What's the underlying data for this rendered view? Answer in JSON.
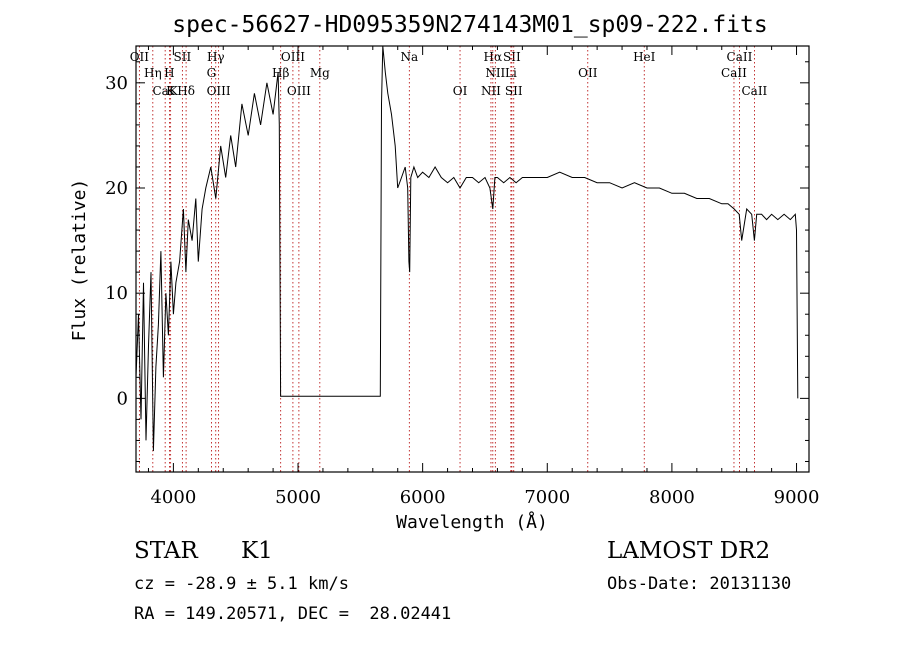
{
  "chart_data": {
    "type": "line",
    "title": "spec-56627-HD095359N274143M01_sp09-222.fits",
    "xlabel": "Wavelength (Å)",
    "ylabel": "Flux (relative)",
    "xlim": [
      3700,
      9100
    ],
    "ylim": [
      -7,
      33.5
    ],
    "xticks": [
      4000,
      5000,
      6000,
      7000,
      8000,
      9000
    ],
    "yticks": [
      0,
      10,
      20,
      30
    ],
    "grid": false,
    "series": [
      {
        "x": [
          3700,
          3720,
          3740,
          3760,
          3780,
          3800,
          3820,
          3840,
          3860,
          3880,
          3900,
          3920,
          3940,
          3960,
          3980,
          4000,
          4020,
          4050,
          4080,
          4100,
          4120,
          4150,
          4180,
          4200,
          4230,
          4260,
          4300,
          4340,
          4380,
          4420,
          4460,
          4500,
          4550,
          4600,
          4650,
          4700,
          4750,
          4800,
          4840,
          4850,
          4860,
          5660,
          5670,
          5680,
          5700,
          5720,
          5750,
          5780,
          5800,
          5830,
          5860,
          5880,
          5890,
          5896,
          5905,
          5930,
          5960,
          6000,
          6050,
          6100,
          6150,
          6200,
          6250,
          6300,
          6350,
          6400,
          6450,
          6500,
          6540,
          6563,
          6580,
          6600,
          6650,
          6700,
          6750,
          6800,
          6900,
          7000,
          7100,
          7200,
          7300,
          7400,
          7500,
          7600,
          7700,
          7800,
          7900,
          8000,
          8100,
          8200,
          8300,
          8400,
          8450,
          8500,
          8540,
          8560,
          8600,
          8640,
          8662,
          8680,
          8720,
          8760,
          8800,
          8850,
          8900,
          8950,
          8990,
          9000,
          9010
        ],
        "y": [
          2,
          8,
          -2,
          11,
          -4,
          5,
          12,
          -5,
          3,
          7,
          14,
          2,
          10,
          6,
          13,
          8,
          11,
          13,
          18,
          12,
          17,
          15,
          19,
          13,
          18,
          20,
          22,
          19,
          24,
          21,
          25,
          22,
          28,
          25,
          29,
          26,
          30,
          27,
          31,
          26,
          0.2,
          0.2,
          28,
          33.5,
          31,
          29,
          27,
          24,
          20,
          21,
          22,
          20,
          13,
          12,
          21,
          22,
          21,
          21.5,
          21,
          22,
          21,
          20.5,
          21,
          20,
          21,
          21,
          20.5,
          21,
          20,
          18,
          21,
          21,
          20.5,
          21,
          20.5,
          21,
          21,
          21,
          21.5,
          21,
          21,
          20.5,
          20.5,
          20,
          20.5,
          20,
          20,
          19.5,
          19.5,
          19,
          19,
          18.5,
          18.5,
          18,
          17.5,
          15,
          18,
          17.5,
          15,
          17.5,
          17.5,
          17,
          17.5,
          17,
          17.5,
          17,
          17.5,
          16,
          0
        ]
      }
    ],
    "lines": [
      {
        "label": "OII",
        "x": 3727,
        "row": 1
      },
      {
        "label": "Hη",
        "x": 3835,
        "row": 2
      },
      {
        "label": "CaK",
        "x": 3934,
        "row": 3
      },
      {
        "label": "H",
        "x": 3968,
        "row": 2
      },
      {
        "label": "K",
        "x": 3978,
        "row": 3
      },
      {
        "label": "SII",
        "x": 4072,
        "row": 1
      },
      {
        "label": "Hδ",
        "x": 4102,
        "row": 3
      },
      {
        "label": "Hγ",
        "x": 4340,
        "row": 1
      },
      {
        "label": "G",
        "x": 4305,
        "row": 2
      },
      {
        "label": "OIII",
        "x": 4363,
        "row": 3
      },
      {
        "label": "OIII",
        "x": 4959,
        "row": 1
      },
      {
        "label": "Hβ",
        "x": 4861,
        "row": 2
      },
      {
        "label": "OIII",
        "x": 5007,
        "row": 3
      },
      {
        "label": "Mg",
        "x": 5175,
        "row": 2
      },
      {
        "label": "Na",
        "x": 5893,
        "row": 1
      },
      {
        "label": "OI",
        "x": 6300,
        "row": 3
      },
      {
        "label": "Hα",
        "x": 6563,
        "row": 1
      },
      {
        "label": "NII",
        "x": 6583,
        "row": 2
      },
      {
        "label": "NII",
        "x": 6548,
        "row": 3
      },
      {
        "label": "SII",
        "x": 6716,
        "row": 1
      },
      {
        "label": "Li",
        "x": 6708,
        "row": 2
      },
      {
        "label": "SII",
        "x": 6731,
        "row": 3
      },
      {
        "label": "OII",
        "x": 7325,
        "row": 2
      },
      {
        "label": "HeI",
        "x": 7778,
        "row": 1
      },
      {
        "label": "CaII",
        "x": 8542,
        "row": 1
      },
      {
        "label": "CaII",
        "x": 8498,
        "row": 2
      },
      {
        "label": "CaII",
        "x": 8662,
        "row": 3
      }
    ],
    "colors": {
      "spectrum": "#000000",
      "line_markers": "#b30000"
    }
  },
  "info": {
    "object_class": "STAR",
    "subclass": "K1",
    "survey": "LAMOST DR2",
    "cz": "cz = -28.9 ± 5.1 km/s",
    "obs_date": "Obs-Date: 20131130",
    "coords": "RA = 149.20571, DEC =  28.02441"
  }
}
